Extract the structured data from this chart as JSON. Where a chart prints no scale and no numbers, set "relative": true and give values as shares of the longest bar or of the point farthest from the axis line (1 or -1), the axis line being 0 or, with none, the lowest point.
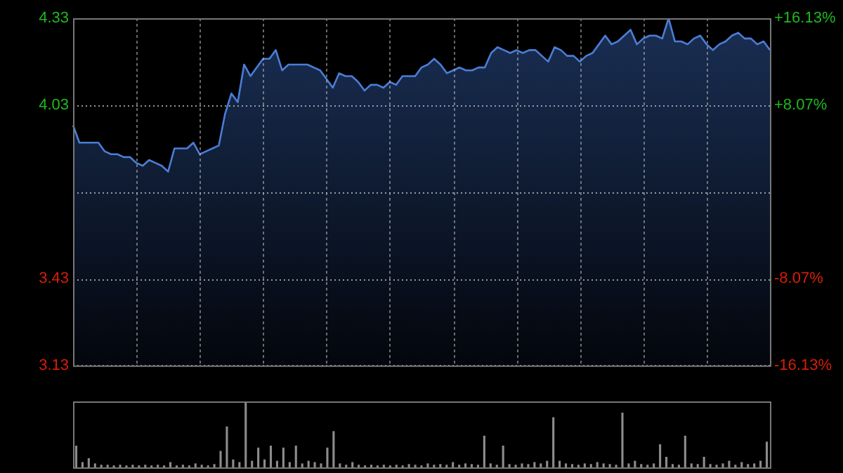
{
  "chart_data": [
    {
      "type": "area",
      "categories": [
        null,
        null,
        null,
        null,
        null,
        null,
        null,
        null,
        null,
        null,
        null,
        null,
        null,
        null,
        null,
        null,
        null,
        null,
        null,
        null,
        null,
        null,
        null,
        null,
        null,
        null,
        null,
        null,
        null,
        null,
        null,
        null,
        null,
        null,
        null,
        null,
        null,
        null,
        null,
        null,
        null,
        null,
        null,
        null,
        null,
        null,
        null,
        null,
        null,
        null,
        null,
        null,
        null,
        null,
        null,
        null,
        null,
        null,
        null,
        null,
        null,
        null,
        null,
        null,
        null,
        null,
        null,
        null,
        null,
        null,
        null,
        null,
        null,
        null,
        null,
        null,
        null,
        null,
        null,
        null,
        null,
        null,
        null,
        null,
        null,
        null,
        null,
        null,
        null,
        null,
        null,
        null,
        null,
        null,
        null,
        null,
        null,
        null,
        null,
        null,
        null,
        null,
        null,
        null,
        null,
        null,
        null,
        null,
        null,
        null,
        null
      ],
      "series": [
        {
          "color": "#4a7ed6",
          "values": [
            3.96,
            3.9,
            3.9,
            3.9,
            3.9,
            3.87,
            3.86,
            3.86,
            3.85,
            3.85,
            3.83,
            3.82,
            3.84,
            3.83,
            3.82,
            3.8,
            3.88,
            3.88,
            3.88,
            3.9,
            3.86,
            3.87,
            3.88,
            3.89,
            4.0,
            4.07,
            4.04,
            4.17,
            4.13,
            4.16,
            4.19,
            4.19,
            4.22,
            4.15,
            4.17,
            4.17,
            4.17,
            4.17,
            4.16,
            4.15,
            4.12,
            4.09,
            4.14,
            4.13,
            4.13,
            4.11,
            4.08,
            4.1,
            4.1,
            4.09,
            4.11,
            4.1,
            4.13,
            4.13,
            4.13,
            4.16,
            4.17,
            4.19,
            4.17,
            4.14,
            4.15,
            4.16,
            4.15,
            4.15,
            4.16,
            4.16,
            4.21,
            4.23,
            4.22,
            4.21,
            4.22,
            4.21,
            4.22,
            4.22,
            4.2,
            4.18,
            4.23,
            4.22,
            4.2,
            4.2,
            4.18,
            4.2,
            4.21,
            4.24,
            4.27,
            4.24,
            4.25,
            4.27,
            4.29,
            4.24,
            4.26,
            4.27,
            4.27,
            4.26,
            4.33,
            4.25,
            4.25,
            4.24,
            4.26,
            4.27,
            4.24,
            4.22,
            4.24,
            4.25,
            4.27,
            4.28,
            4.26,
            4.26,
            4.24,
            4.25,
            4.22
          ]
        }
      ],
      "ylim": [
        3.13,
        4.33
      ],
      "yticks": [
        3.13,
        3.43,
        {
          "value": 3.73,
          "label": null
        },
        4.03,
        4.33
      ],
      "y2lim": [
        -16.13,
        16.13
      ],
      "y2ticks": [
        {
          "value": -16.13,
          "label": "-16.13%"
        },
        {
          "value": -8.07,
          "label": "-8.07%"
        },
        {
          "value": 0,
          "label": null
        },
        {
          "value": 8.07,
          "label": "+8.07%"
        },
        {
          "value": 16.13,
          "label": "+16.13%"
        }
      ],
      "grid": true
    },
    {
      "type": "bar",
      "relative": true,
      "color": "#8c8c8c",
      "categories": [
        null,
        null,
        null,
        null,
        null,
        null,
        null,
        null,
        null,
        null,
        null,
        null,
        null,
        null,
        null,
        null,
        null,
        null,
        null,
        null,
        null,
        null,
        null,
        null,
        null,
        null,
        null,
        null,
        null,
        null,
        null,
        null,
        null,
        null,
        null,
        null,
        null,
        null,
        null,
        null,
        null,
        null,
        null,
        null,
        null,
        null,
        null,
        null,
        null,
        null,
        null,
        null,
        null,
        null,
        null,
        null,
        null,
        null,
        null,
        null,
        null,
        null,
        null,
        null,
        null,
        null,
        null,
        null,
        null,
        null,
        null,
        null,
        null,
        null,
        null,
        null,
        null,
        null,
        null,
        null,
        null,
        null,
        null,
        null,
        null,
        null,
        null,
        null,
        null,
        null,
        null,
        null,
        null,
        null,
        null,
        null,
        null,
        null,
        null,
        null,
        null,
        null,
        null,
        null,
        null,
        null,
        null,
        null,
        null,
        null,
        null
      ],
      "values": [
        0.33,
        0.08,
        0.14,
        0.06,
        0.04,
        0.04,
        0.03,
        0.04,
        0.03,
        0.04,
        0.03,
        0.04,
        0.03,
        0.04,
        0.03,
        0.08,
        0.03,
        0.04,
        0.03,
        0.06,
        0.04,
        0.03,
        0.05,
        0.25,
        0.62,
        0.12,
        0.08,
        1.0,
        0.1,
        0.3,
        0.12,
        0.33,
        0.1,
        0.3,
        0.08,
        0.33,
        0.06,
        0.1,
        0.08,
        0.06,
        0.3,
        0.55,
        0.06,
        0.04,
        0.08,
        0.04,
        0.03,
        0.04,
        0.03,
        0.04,
        0.03,
        0.04,
        0.03,
        0.05,
        0.04,
        0.03,
        0.06,
        0.04,
        0.05,
        0.04,
        0.08,
        0.04,
        0.06,
        0.05,
        0.04,
        0.48,
        0.06,
        0.04,
        0.33,
        0.05,
        0.04,
        0.06,
        0.05,
        0.08,
        0.06,
        0.1,
        0.76,
        0.1,
        0.06,
        0.05,
        0.04,
        0.06,
        0.05,
        0.08,
        0.06,
        0.05,
        0.04,
        0.83,
        0.06,
        0.1,
        0.05,
        0.04,
        0.06,
        0.35,
        0.16,
        0.05,
        0.04,
        0.48,
        0.06,
        0.05,
        0.16,
        0.05,
        0.04,
        0.06,
        0.1,
        0.04,
        0.08,
        0.05,
        0.06,
        0.1,
        0.39
      ]
    }
  ]
}
